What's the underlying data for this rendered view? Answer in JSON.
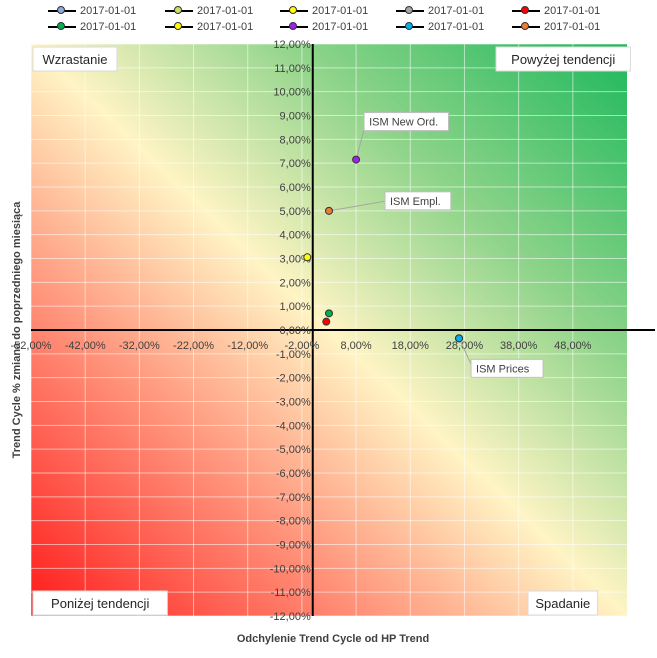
{
  "chart_data": {
    "type": "scatter",
    "xlabel": "Odchylenie Trend Cycle od HP Trend",
    "ylabel": "Trend Cycle % zmiana do poprzedniego miesiąca",
    "xlim": [
      -52,
      58
    ],
    "ylim": [
      -12,
      12
    ],
    "x_ticks": [
      "-52,00%",
      "-42,00%",
      "-32,00%",
      "-22,00%",
      "-12,00%",
      "-2,00%",
      "8,00%",
      "18,00%",
      "28,00%",
      "38,00%",
      "48,00%"
    ],
    "x_tick_values": [
      -52,
      -42,
      -32,
      -22,
      -12,
      -2,
      8,
      18,
      28,
      38,
      48
    ],
    "y_ticks": [
      "12,00%",
      "11,00%",
      "10,00%",
      "9,00%",
      "8,00%",
      "7,00%",
      "6,00%",
      "5,00%",
      "4,00%",
      "3,00%",
      "2,00%",
      "1,00%",
      "0,00%",
      "-1,00%",
      "-2,00%",
      "-3,00%",
      "-4,00%",
      "-5,00%",
      "-6,00%",
      "-7,00%",
      "-8,00%",
      "-9,00%",
      "-10,00%",
      "-11,00%",
      "-12,00%"
    ],
    "y_tick_values": [
      12,
      11,
      10,
      9,
      8,
      7,
      6,
      5,
      4,
      3,
      2,
      1,
      0,
      -1,
      -2,
      -3,
      -4,
      -5,
      -6,
      -7,
      -8,
      -9,
      -10,
      -11,
      -12
    ],
    "quadrant_labels": {
      "top_left": "Wzrastanie",
      "top_right": "Powyżej tendencji",
      "bottom_left": "Poniżej tendencji",
      "bottom_right": "Spadanie"
    },
    "grid": true,
    "legend": "top",
    "series": [
      {
        "name": "2017-01-01",
        "color": "#8ea9db",
        "x": 27,
        "y": -0.35,
        "label": "ISM Prices"
      },
      {
        "name": "2017-01-01",
        "color": "#c9e265",
        "x": null,
        "y": null,
        "label": ""
      },
      {
        "name": "2017-01-01",
        "color": "#ffff00",
        "x": -1,
        "y": 3.05,
        "label": ""
      },
      {
        "name": "2017-01-01",
        "color": "#a6a6a6",
        "x": null,
        "y": null,
        "label": ""
      },
      {
        "name": "2017-01-01",
        "color": "#ff0000",
        "x": 2.5,
        "y": 0.35,
        "label": ""
      },
      {
        "name": "2017-01-01",
        "color": "#00b050",
        "x": 3,
        "y": 0.7,
        "label": ""
      },
      {
        "name": "2017-01-01",
        "color": "#ffff00",
        "x": null,
        "y": null,
        "label": ""
      },
      {
        "name": "2017-01-01",
        "color": "#a020f0",
        "x": 8,
        "y": 7.15,
        "label": "ISM New Ord."
      },
      {
        "name": "2017-01-01",
        "color": "#00b0f0",
        "x": 27,
        "y": -0.35,
        "label": ""
      },
      {
        "name": "2017-01-01",
        "color": "#ed7d31",
        "x": 3,
        "y": 5,
        "label": "ISM Empl."
      }
    ]
  }
}
